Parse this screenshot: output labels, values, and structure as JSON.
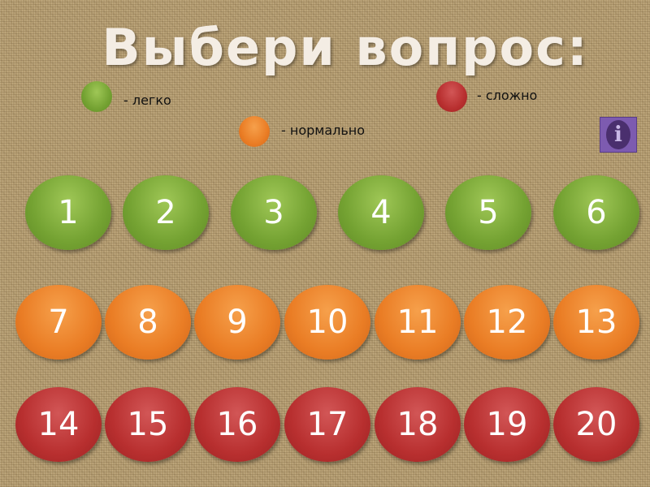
{
  "title": "Выбери вопрос:",
  "legend": {
    "easy": "- легко",
    "normal": "- нормально",
    "hard": "- сложно"
  },
  "info_icon": "i",
  "colors": {
    "easy": "#74a232",
    "normal": "#ea7d25",
    "hard": "#b82f2f"
  },
  "questions": {
    "easy": [
      "1",
      "2",
      "3",
      "4",
      "5",
      "6"
    ],
    "normal": [
      "7",
      "8",
      "9",
      "10",
      "11",
      "12",
      "13"
    ],
    "hard": [
      "14",
      "15",
      "16",
      "17",
      "18",
      "19",
      "20"
    ]
  }
}
